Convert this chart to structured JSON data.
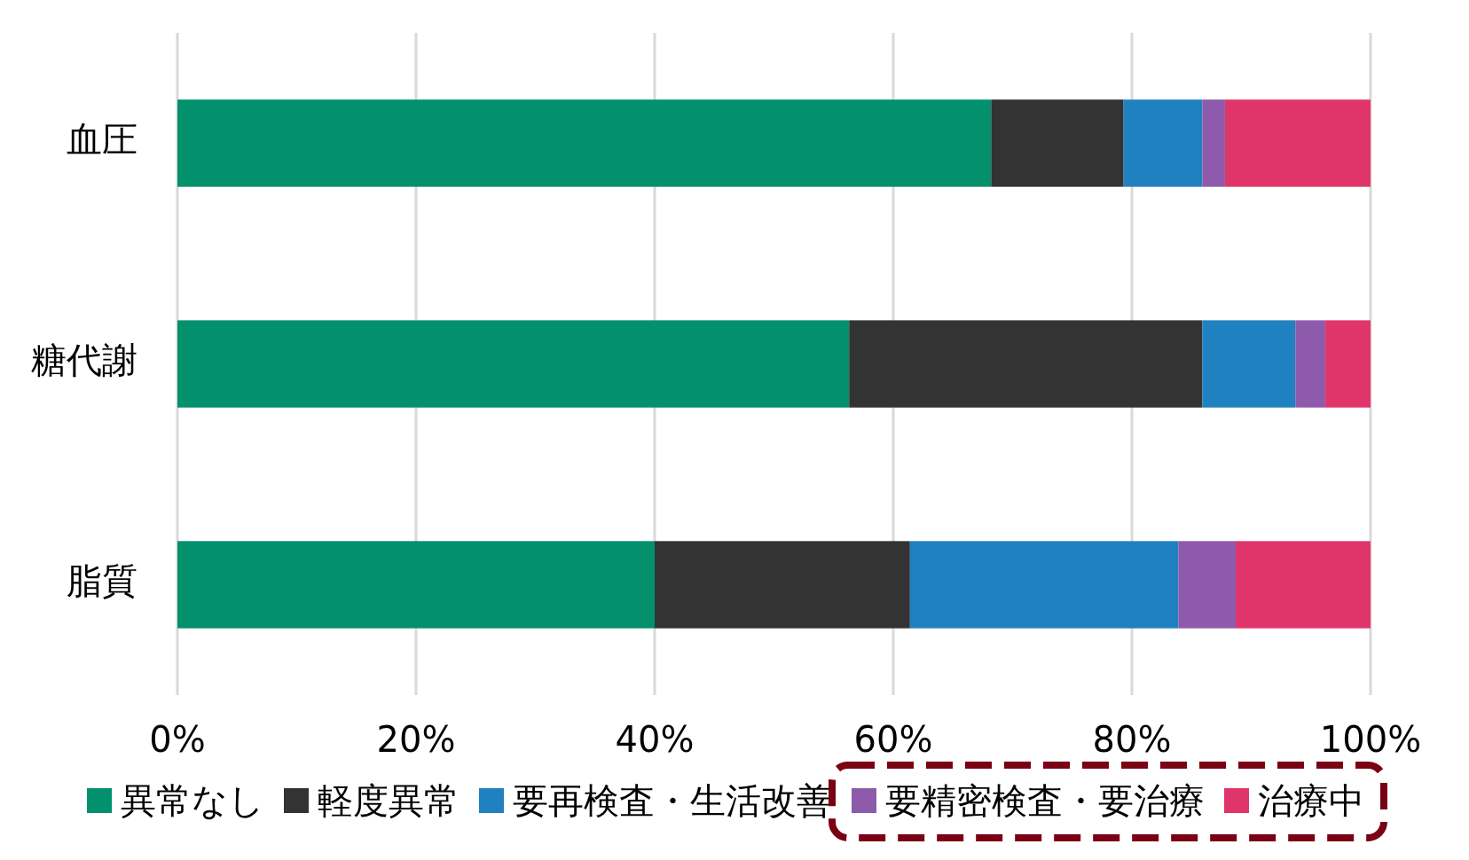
{
  "chart_data": {
    "type": "bar",
    "orientation": "horizontal",
    "stacked": true,
    "categories": [
      "血圧",
      "糖代謝",
      "脂質"
    ],
    "series": [
      {
        "name": "異常なし",
        "color": "#02906d",
        "values": [
          68.2,
          56.3,
          40.0
        ]
      },
      {
        "name": "軽度異常",
        "color": "#333333",
        "values": [
          11.1,
          29.6,
          21.4
        ]
      },
      {
        "name": "要再検査・生活改善",
        "color": "#1f81bf",
        "values": [
          6.6,
          7.8,
          22.5
        ]
      },
      {
        "name": "要精密検査・要治療",
        "color": "#8e5aac",
        "values": [
          1.9,
          2.5,
          4.8
        ]
      },
      {
        "name": "治療中",
        "color": "#e0356b",
        "values": [
          12.2,
          3.8,
          11.3
        ]
      }
    ],
    "xlim": [
      0,
      100
    ],
    "xticks": [
      {
        "value": 0,
        "label": "0%"
      },
      {
        "value": 20,
        "label": "20%"
      },
      {
        "value": 40,
        "label": "40%"
      },
      {
        "value": 60,
        "label": "60%"
      },
      {
        "value": 80,
        "label": "80%"
      },
      {
        "value": 100,
        "label": "100%"
      }
    ],
    "grid": "x",
    "legend": "bottom"
  }
}
